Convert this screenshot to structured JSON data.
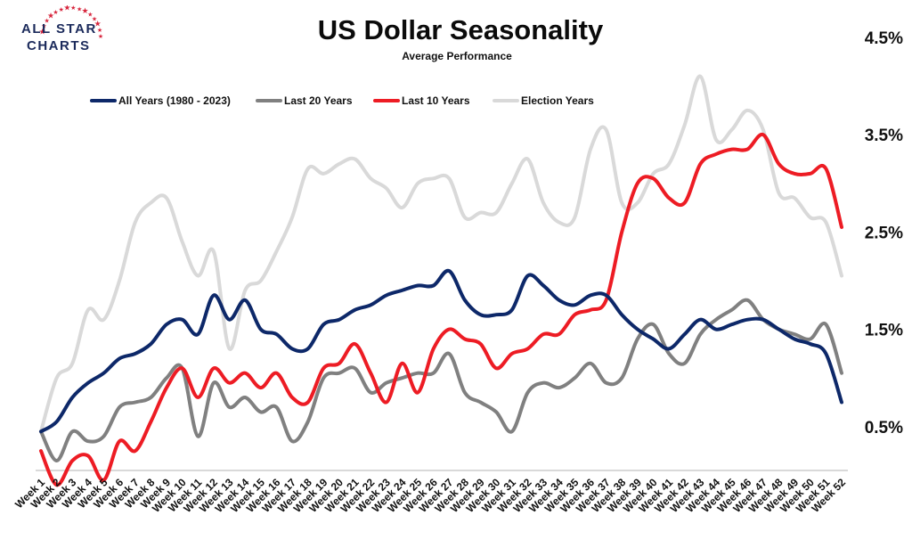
{
  "logo": {
    "line1": "ALL STAR",
    "line2": "CHARTS",
    "icon": "star-arc-logo",
    "colors": {
      "navy": "#1b2a5b",
      "red": "#d7263d"
    }
  },
  "chart_data": {
    "type": "line",
    "title": "US Dollar Seasonality",
    "subtitle": "Average Performance",
    "xlabel": "",
    "ylabel": "",
    "ylim": [
      -0.5,
      4.5
    ],
    "yticks": [
      "4.5%",
      "3.5%",
      "2.5%",
      "1.5%",
      "0.5%"
    ],
    "ytick_values": [
      4.5,
      3.5,
      2.5,
      1.5,
      0.5
    ],
    "grid": false,
    "legend_position": "top",
    "categories": [
      "Week 1",
      "Week 2",
      "Week 3",
      "Week 4",
      "Week 5",
      "Week 6",
      "Week 7",
      "Week 8",
      "Week 9",
      "Week 10",
      "Week 11",
      "Week 12",
      "Week 13",
      "Week 14",
      "Week 15",
      "Week 16",
      "Week 17",
      "Week 18",
      "Week 19",
      "Week 20",
      "Week 21",
      "Week 22",
      "Week 23",
      "Week 24",
      "Week 25",
      "Week 26",
      "Week 27",
      "Week 28",
      "Week 29",
      "Week 30",
      "Week 31",
      "Week 32",
      "Week 33",
      "Week 34",
      "Week 35",
      "Week 36",
      "Week 37",
      "Week 38",
      "Week 39",
      "Week 40",
      "Week 41",
      "Week 42",
      "Week 43",
      "Week 44",
      "Week 45",
      "Week 46",
      "Week 47",
      "Week 48",
      "Week 49",
      "Week 50",
      "Week 51",
      "Week 52"
    ],
    "series": [
      {
        "name": "Election Years",
        "color": "#d9d9d9",
        "values": [
          0.45,
          1.0,
          1.15,
          1.7,
          1.6,
          2.0,
          2.6,
          2.8,
          2.85,
          2.4,
          2.05,
          2.3,
          1.3,
          1.9,
          2.0,
          2.3,
          2.65,
          3.15,
          3.1,
          3.2,
          3.25,
          3.05,
          2.95,
          2.75,
          3.0,
          3.05,
          3.05,
          2.65,
          2.7,
          2.7,
          3.0,
          3.25,
          2.8,
          2.6,
          2.65,
          3.35,
          3.55,
          2.8,
          2.8,
          3.1,
          3.2,
          3.6,
          4.1,
          3.45,
          3.55,
          3.75,
          3.55,
          2.9,
          2.85,
          2.65,
          2.6,
          2.05
        ]
      },
      {
        "name": "Last 20 Years",
        "color": "#808080",
        "values": [
          0.45,
          0.15,
          0.45,
          0.35,
          0.4,
          0.7,
          0.75,
          0.8,
          1.0,
          1.1,
          0.4,
          0.95,
          0.7,
          0.8,
          0.65,
          0.7,
          0.35,
          0.55,
          1.0,
          1.05,
          1.1,
          0.85,
          0.95,
          1.0,
          1.05,
          1.05,
          1.25,
          0.85,
          0.75,
          0.65,
          0.45,
          0.85,
          0.95,
          0.9,
          1.0,
          1.15,
          0.95,
          1.0,
          1.4,
          1.55,
          1.25,
          1.15,
          1.45,
          1.6,
          1.7,
          1.8,
          1.6,
          1.5,
          1.45,
          1.4,
          1.55,
          1.05
        ]
      },
      {
        "name": "Last 10 Years",
        "color": "#ed1c24",
        "values": [
          0.25,
          -0.1,
          0.15,
          0.2,
          -0.05,
          0.35,
          0.25,
          0.55,
          0.9,
          1.1,
          0.8,
          1.1,
          0.95,
          1.05,
          0.9,
          1.05,
          0.8,
          0.75,
          1.1,
          1.15,
          1.35,
          1.05,
          0.75,
          1.15,
          0.85,
          1.3,
          1.5,
          1.4,
          1.35,
          1.1,
          1.25,
          1.3,
          1.45,
          1.45,
          1.65,
          1.7,
          1.8,
          2.5,
          3.0,
          3.05,
          2.85,
          2.8,
          3.2,
          3.3,
          3.35,
          3.35,
          3.5,
          3.2,
          3.1,
          3.1,
          3.15,
          2.55
        ]
      },
      {
        "name": "All Years (1980 - 2023)",
        "color": "#0d2869",
        "values": [
          0.45,
          0.55,
          0.8,
          0.95,
          1.05,
          1.2,
          1.25,
          1.35,
          1.55,
          1.6,
          1.45,
          1.85,
          1.6,
          1.8,
          1.5,
          1.45,
          1.3,
          1.3,
          1.55,
          1.6,
          1.7,
          1.75,
          1.85,
          1.9,
          1.95,
          1.95,
          2.1,
          1.8,
          1.65,
          1.65,
          1.7,
          2.05,
          1.95,
          1.8,
          1.75,
          1.85,
          1.85,
          1.65,
          1.5,
          1.4,
          1.3,
          1.45,
          1.6,
          1.5,
          1.55,
          1.6,
          1.6,
          1.5,
          1.4,
          1.35,
          1.25,
          0.75
        ]
      }
    ],
    "legend_order": [
      "All Years (1980 - 2023)",
      "Last 20 Years",
      "Last 10 Years",
      "Election Years"
    ]
  }
}
